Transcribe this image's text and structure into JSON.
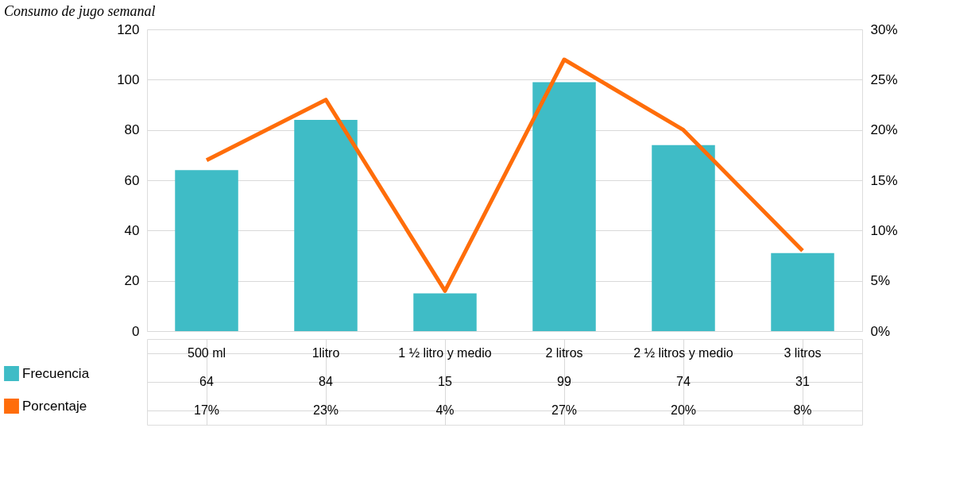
{
  "chart_data": {
    "type": "bar",
    "title": "Consumo de jugo semanal",
    "categories": [
      "500 ml",
      "1litro",
      "1 ½ litro y medio",
      "2 litros",
      "2 ½ litros y medio",
      "3 litros"
    ],
    "series": [
      {
        "name": "Frecuencia",
        "color": "#3fbcc6",
        "values": [
          64,
          84,
          15,
          99,
          74,
          31
        ],
        "value_labels": [
          "64",
          "84",
          "15",
          "99",
          "74",
          "31"
        ]
      },
      {
        "name": "Porcentaje",
        "type": "line",
        "axis": "y2",
        "color": "#ff6d0a",
        "values": [
          17,
          23,
          4,
          27,
          20,
          8
        ],
        "value_labels": [
          "17%",
          "23%",
          "4%",
          "27%",
          "20%",
          "8%"
        ]
      }
    ],
    "ylim": [
      0,
      120
    ],
    "yticks": [
      0,
      20,
      40,
      60,
      80,
      100,
      120
    ],
    "y2lim": [
      0,
      30
    ],
    "y2ticks": [
      {
        "value": 0,
        "label": "0%"
      },
      {
        "value": 5,
        "label": "5%"
      },
      {
        "value": 10,
        "label": "10%"
      },
      {
        "value": 15,
        "label": "15%"
      },
      {
        "value": 20,
        "label": "20%"
      },
      {
        "value": 25,
        "label": "25%"
      },
      {
        "value": 30,
        "label": "30%"
      }
    ],
    "grid": "y",
    "legend": "bottom left",
    "marker": "none",
    "line_style": "solid"
  }
}
